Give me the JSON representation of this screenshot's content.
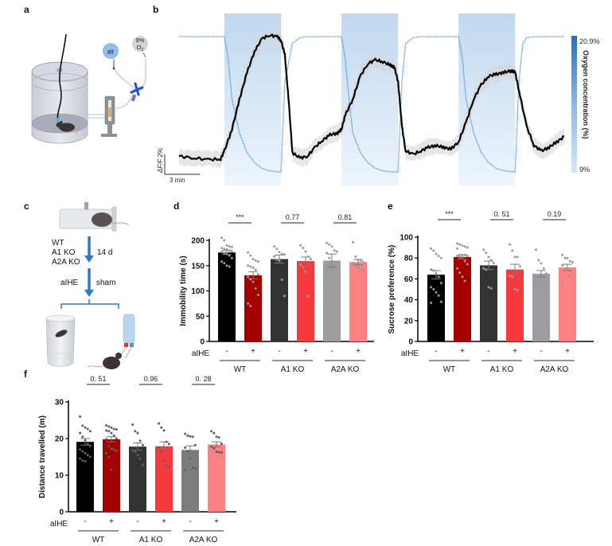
{
  "panels": {
    "a": {
      "label": "a",
      "labels": {
        "air": "air",
        "low_o2_line1": "9%",
        "low_o2_line2": "O",
        "low_o2_sub": "2"
      }
    },
    "b": {
      "label": "b"
    },
    "c": {
      "label": "c",
      "genotypes": [
        "WT",
        "A1 KO",
        "A2A KO"
      ],
      "duration": "14 d",
      "left_branch": "aIHE",
      "right_branch": "sham"
    },
    "d": {
      "label": "d"
    },
    "e": {
      "label": "e"
    },
    "f": {
      "label": "f"
    }
  },
  "colors": {
    "WT_sham": "#000000",
    "WT_aIHE": "#a50000",
    "A1KO_sham": "#333333",
    "A1KO_aIHE": "#f5393c",
    "A2AKO_sham_d": "#9d9da0",
    "A2AKO_sham_f": "#7c7c7c",
    "A2AKO_aIHE": "#ff8080",
    "hypoxia_band": "#c4dbf0",
    "oxygen_trace": "#3a8fd6",
    "colorbar_top": "#2b6fb5",
    "colorbar_bottom": "#d7e7f6"
  },
  "chart_data": [
    {
      "id": "b",
      "type": "line",
      "title": "",
      "xlabel": "",
      "ylabel": "",
      "scalebar_y": "ΔF/F 2%",
      "scalebar_x": "3 min",
      "colorbar": {
        "label": "Oxygen concentration (%)",
        "max_label": "20.9%",
        "min_label": "9%",
        "range": [
          9,
          20.9
        ]
      },
      "hypoxia_epochs_min": [
        [
          3,
          10.5
        ],
        [
          18.5,
          26
        ],
        [
          34,
          41.5
        ]
      ],
      "x_range_min": [
        -3,
        48
      ],
      "series": [
        {
          "name": "GCaMP ΔF/F (%)",
          "color": "#000000",
          "x": [
            -3,
            -1,
            1,
            2.5,
            3,
            4,
            5,
            6,
            7,
            8,
            9,
            10,
            10.5,
            11,
            11.5,
            12,
            13,
            14,
            15,
            16,
            17,
            18,
            18.5,
            19,
            20,
            21,
            22,
            23,
            24,
            25,
            25.5,
            26,
            26.5,
            27,
            28,
            29,
            30,
            31,
            32,
            33,
            34,
            35,
            36,
            37,
            38,
            39,
            40,
            41,
            41.5,
            42,
            43,
            44,
            45,
            46,
            47,
            48
          ],
          "y": [
            0.3,
            0.2,
            0.1,
            0.15,
            0.6,
            1.8,
            3.5,
            5.0,
            6.2,
            6.9,
            7.1,
            7.0,
            6.8,
            6.0,
            3.5,
            0.5,
            0.2,
            0.3,
            0.8,
            1.2,
            1.5,
            1.6,
            1.8,
            2.6,
            3.5,
            4.8,
            5.5,
            5.7,
            5.6,
            5.4,
            5.3,
            4.5,
            2.0,
            0.6,
            0.4,
            0.6,
            0.8,
            0.9,
            0.8,
            0.7,
            1.1,
            2.2,
            3.5,
            4.3,
            4.8,
            4.9,
            5.0,
            5.1,
            5.0,
            4.0,
            2.0,
            0.9,
            0.6,
            0.8,
            1.1,
            1.4
          ]
        },
        {
          "name": "O2 concentration (%)",
          "color": "#3a8fd6",
          "x": [
            -3,
            3,
            3.5,
            4,
            5,
            6,
            7,
            8,
            9,
            10,
            10.5,
            11,
            12,
            13,
            14,
            18.5,
            19,
            19.5,
            20,
            21,
            22,
            23,
            24,
            25,
            26,
            26.5,
            27,
            28,
            29,
            34,
            34.5,
            35,
            36,
            37,
            38,
            39,
            40,
            41.5,
            42,
            42.5,
            43,
            44,
            48
          ],
          "y": [
            20.9,
            20.9,
            19,
            15.5,
            12.5,
            10.8,
            9.9,
            9.4,
            9.2,
            9.1,
            9.1,
            17,
            20.3,
            20.8,
            20.9,
            20.9,
            19,
            15.5,
            12.5,
            10.8,
            9.9,
            9.4,
            9.2,
            9.1,
            9.1,
            17,
            20.3,
            20.8,
            20.9,
            20.9,
            19,
            15.5,
            12.5,
            10.8,
            9.9,
            9.4,
            9.2,
            9.1,
            17,
            20.3,
            20.8,
            20.9,
            20.9
          ]
        }
      ]
    },
    {
      "id": "d",
      "type": "bar",
      "title": "",
      "xlabel": "",
      "ylabel": "Immobility time (s)",
      "ylim": [
        0,
        200
      ],
      "yticks": [
        0,
        50,
        100,
        150,
        200
      ],
      "row_label": "aIHE",
      "categories": [
        "-",
        "+",
        "-",
        "+",
        "-",
        "+"
      ],
      "groups": [
        "WT",
        "A1 KO",
        "A2A KO"
      ],
      "series": [
        {
          "name": "WT -",
          "value": 176,
          "sem": 4,
          "color_key": "WT_sham",
          "points": [
            205,
            200,
            190,
            188,
            187,
            185,
            183,
            182,
            180,
            178,
            177,
            175,
            173,
            170,
            165,
            158,
            155,
            150,
            148
          ]
        },
        {
          "name": "WT +",
          "value": 131,
          "sem": 7,
          "color_key": "WT_aIHE",
          "points": [
            176,
            170,
            163,
            160,
            158,
            150,
            148,
            146,
            142,
            133,
            128,
            123,
            118,
            105,
            92,
            75,
            70
          ]
        },
        {
          "name": "A1 KO -",
          "value": 163,
          "sem": 8,
          "color_key": "A1KO_sham",
          "points": [
            188,
            183,
            177,
            173,
            172,
            168,
            162,
            160,
            122,
            90
          ]
        },
        {
          "name": "A1 KO +",
          "value": 159,
          "sem": 8,
          "color_key": "A1KO_aIHE",
          "points": [
            190,
            185,
            178,
            168,
            163,
            152,
            147,
            138,
            90
          ]
        },
        {
          "name": "A2A KO -",
          "value": 160,
          "sem": 13,
          "color_key": "A2AKO_sham_d",
          "points": [
            195,
            192,
            188,
            180,
            178,
            175,
            165,
            152,
            45
          ]
        },
        {
          "name": "A2A KO +",
          "value": 157,
          "sem": 5,
          "color_key": "A2AKO_aIHE",
          "points": [
            196,
            168,
            162,
            160,
            157,
            155,
            150,
            147,
            143,
            140
          ]
        }
      ],
      "comparisons": [
        {
          "group": "WT",
          "text": "***"
        },
        {
          "group": "A1 KO",
          "text": "0.77"
        },
        {
          "group": "A2A KO",
          "text": "0.81"
        }
      ]
    },
    {
      "id": "e",
      "type": "bar",
      "title": "",
      "xlabel": "",
      "ylabel": "Sucrose preference (%)",
      "ylim": [
        0,
        100
      ],
      "yticks": [
        0,
        20,
        40,
        60,
        80,
        100
      ],
      "row_label": "aIHE",
      "categories": [
        "-",
        "+",
        "-",
        "+",
        "-",
        "+"
      ],
      "groups": [
        "WT",
        "A1 KO",
        "A2A KO"
      ],
      "series": [
        {
          "name": "WT -",
          "value": 64,
          "sem": 4,
          "color_key": "WT_sham",
          "points": [
            89,
            87,
            84,
            82,
            80,
            69,
            68,
            65,
            62,
            56,
            52,
            50,
            47,
            44,
            38,
            37
          ]
        },
        {
          "name": "WT +",
          "value": 81,
          "sem": 2,
          "color_key": "WT_aIHE",
          "points": [
            94,
            93,
            92,
            91,
            90,
            89,
            83,
            83,
            83,
            82,
            82,
            81,
            81,
            77,
            74,
            70,
            66,
            62,
            58
          ]
        },
        {
          "name": "A1 KO -",
          "value": 73,
          "sem": 4,
          "color_key": "A1KO_sham",
          "points": [
            88,
            85,
            81,
            78,
            75,
            70,
            69,
            52,
            51
          ]
        },
        {
          "name": "A1 KO +",
          "value": 69,
          "sem": 5,
          "color_key": "A1KO_aIHE",
          "points": [
            93,
            87,
            81,
            81,
            72,
            63,
            62,
            50,
            49
          ]
        },
        {
          "name": "A2A KO -",
          "value": 65,
          "sem": 3,
          "color_key": "A2AKO_sham_d",
          "points": [
            88,
            78,
            75,
            70,
            65,
            62,
            57,
            54,
            53,
            52
          ]
        },
        {
          "name": "A2A KO +",
          "value": 71,
          "sem": 3,
          "color_key": "A2AKO_aIHE",
          "points": [
            83,
            80,
            80,
            77,
            76,
            73,
            70,
            69,
            63,
            60,
            56
          ]
        }
      ],
      "comparisons": [
        {
          "group": "WT",
          "text": "***"
        },
        {
          "group": "A1 KO",
          "text": "0. 51"
        },
        {
          "group": "A2A KO",
          "text": "0.19"
        }
      ]
    },
    {
      "id": "f",
      "type": "bar",
      "title": "",
      "xlabel": "",
      "ylabel": "Distance travelled (m)",
      "ylim": [
        0,
        30
      ],
      "yticks": [
        0,
        10,
        20,
        30
      ],
      "row_label": "aIHE",
      "categories": [
        "-",
        "+",
        "-",
        "+",
        "-",
        "+"
      ],
      "groups": [
        "WT",
        "A1 KO",
        "A2A KO"
      ],
      "series": [
        {
          "name": "WT -",
          "value": 19.1,
          "sem": 0.9,
          "color_key": "WT_sham",
          "points": [
            26,
            23.5,
            23,
            22.6,
            22,
            21.5,
            20.5,
            19.5,
            18.5,
            18,
            17,
            16.5,
            16,
            15.5,
            15,
            14.5,
            14,
            13.8
          ]
        },
        {
          "name": "WT +",
          "value": 19.8,
          "sem": 0.7,
          "color_key": "WT_aIHE",
          "points": [
            23.6,
            23.3,
            23,
            22.6,
            22.5,
            22.2,
            22,
            21.5,
            20.8,
            20,
            19.8,
            18,
            17.2,
            17,
            16.6,
            16,
            15,
            11.5
          ]
        },
        {
          "name": "A1 KO -",
          "value": 17.8,
          "sem": 1.0,
          "color_key": "A1KO_sham",
          "points": [
            23.8,
            22,
            21.5,
            19.4,
            18.2,
            16.8,
            16.4,
            15.5,
            14.5,
            12.8
          ]
        },
        {
          "name": "A1 KO +",
          "value": 17.9,
          "sem": 1.2,
          "color_key": "A1KO_aIHE",
          "points": [
            24.1,
            23,
            22.2,
            19.1,
            18.5,
            17.5,
            16.5,
            14,
            12.5,
            12.3
          ]
        },
        {
          "name": "A2A KO -",
          "value": 16.9,
          "sem": 1.1,
          "color_key": "A2AKO_sham_f",
          "points": [
            21.3,
            20.8,
            20.6,
            20.5,
            18.2,
            17.5,
            16.5,
            14.5,
            12,
            11.8,
            11.3
          ]
        },
        {
          "name": "A2A KO +",
          "value": 18.4,
          "sem": 0.7,
          "color_key": "A2AKO_aIHE",
          "points": [
            22,
            21.5,
            20.5,
            20.3,
            18.6,
            17.8,
            17.3,
            16.4,
            16.3,
            16.2
          ]
        }
      ],
      "comparisons": [
        {
          "group": "WT",
          "text": "0. 51"
        },
        {
          "group": "A1 KO",
          "text": "0.96"
        },
        {
          "group": "A2A KO",
          "text": "0. 28"
        }
      ]
    }
  ]
}
